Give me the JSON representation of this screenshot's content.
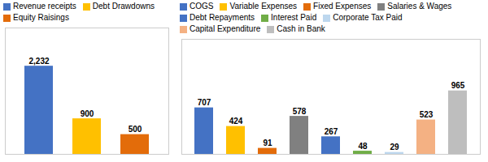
{
  "chart_data": [
    {
      "type": "bar",
      "categories": [
        "Revenue receipts",
        "Debt Drawdowns",
        "Equity Raisings"
      ],
      "values": [
        2232,
        900,
        500
      ],
      "value_labels": [
        "2,232",
        "900",
        "500"
      ],
      "colors": [
        "#4472C4",
        "#FFC000",
        "#E36C0A"
      ],
      "ylim": [
        0,
        3200
      ],
      "legend": "upper left",
      "data_labels": true,
      "tick_labels": false
    },
    {
      "type": "bar",
      "categories": [
        "COGS",
        "Variable Expenses",
        "Fixed Expenses",
        "Salaries & Wages",
        "Debt Repayments",
        "Interest Paid",
        "Corporate Tax Paid",
        "Capital Expenditure",
        "Cash in Bank"
      ],
      "values": [
        707,
        424,
        91,
        578,
        267,
        48,
        29,
        523,
        965
      ],
      "colors": [
        "#4472C4",
        "#FFC000",
        "#E36C0A",
        "#808080",
        "#4472C4",
        "#70AD47",
        "#BDD7EE",
        "#F4B183",
        "#BEBEBE"
      ],
      "ylim": [
        0,
        1750
      ],
      "legend": "upper left",
      "data_labels": true,
      "tick_labels": false
    }
  ]
}
